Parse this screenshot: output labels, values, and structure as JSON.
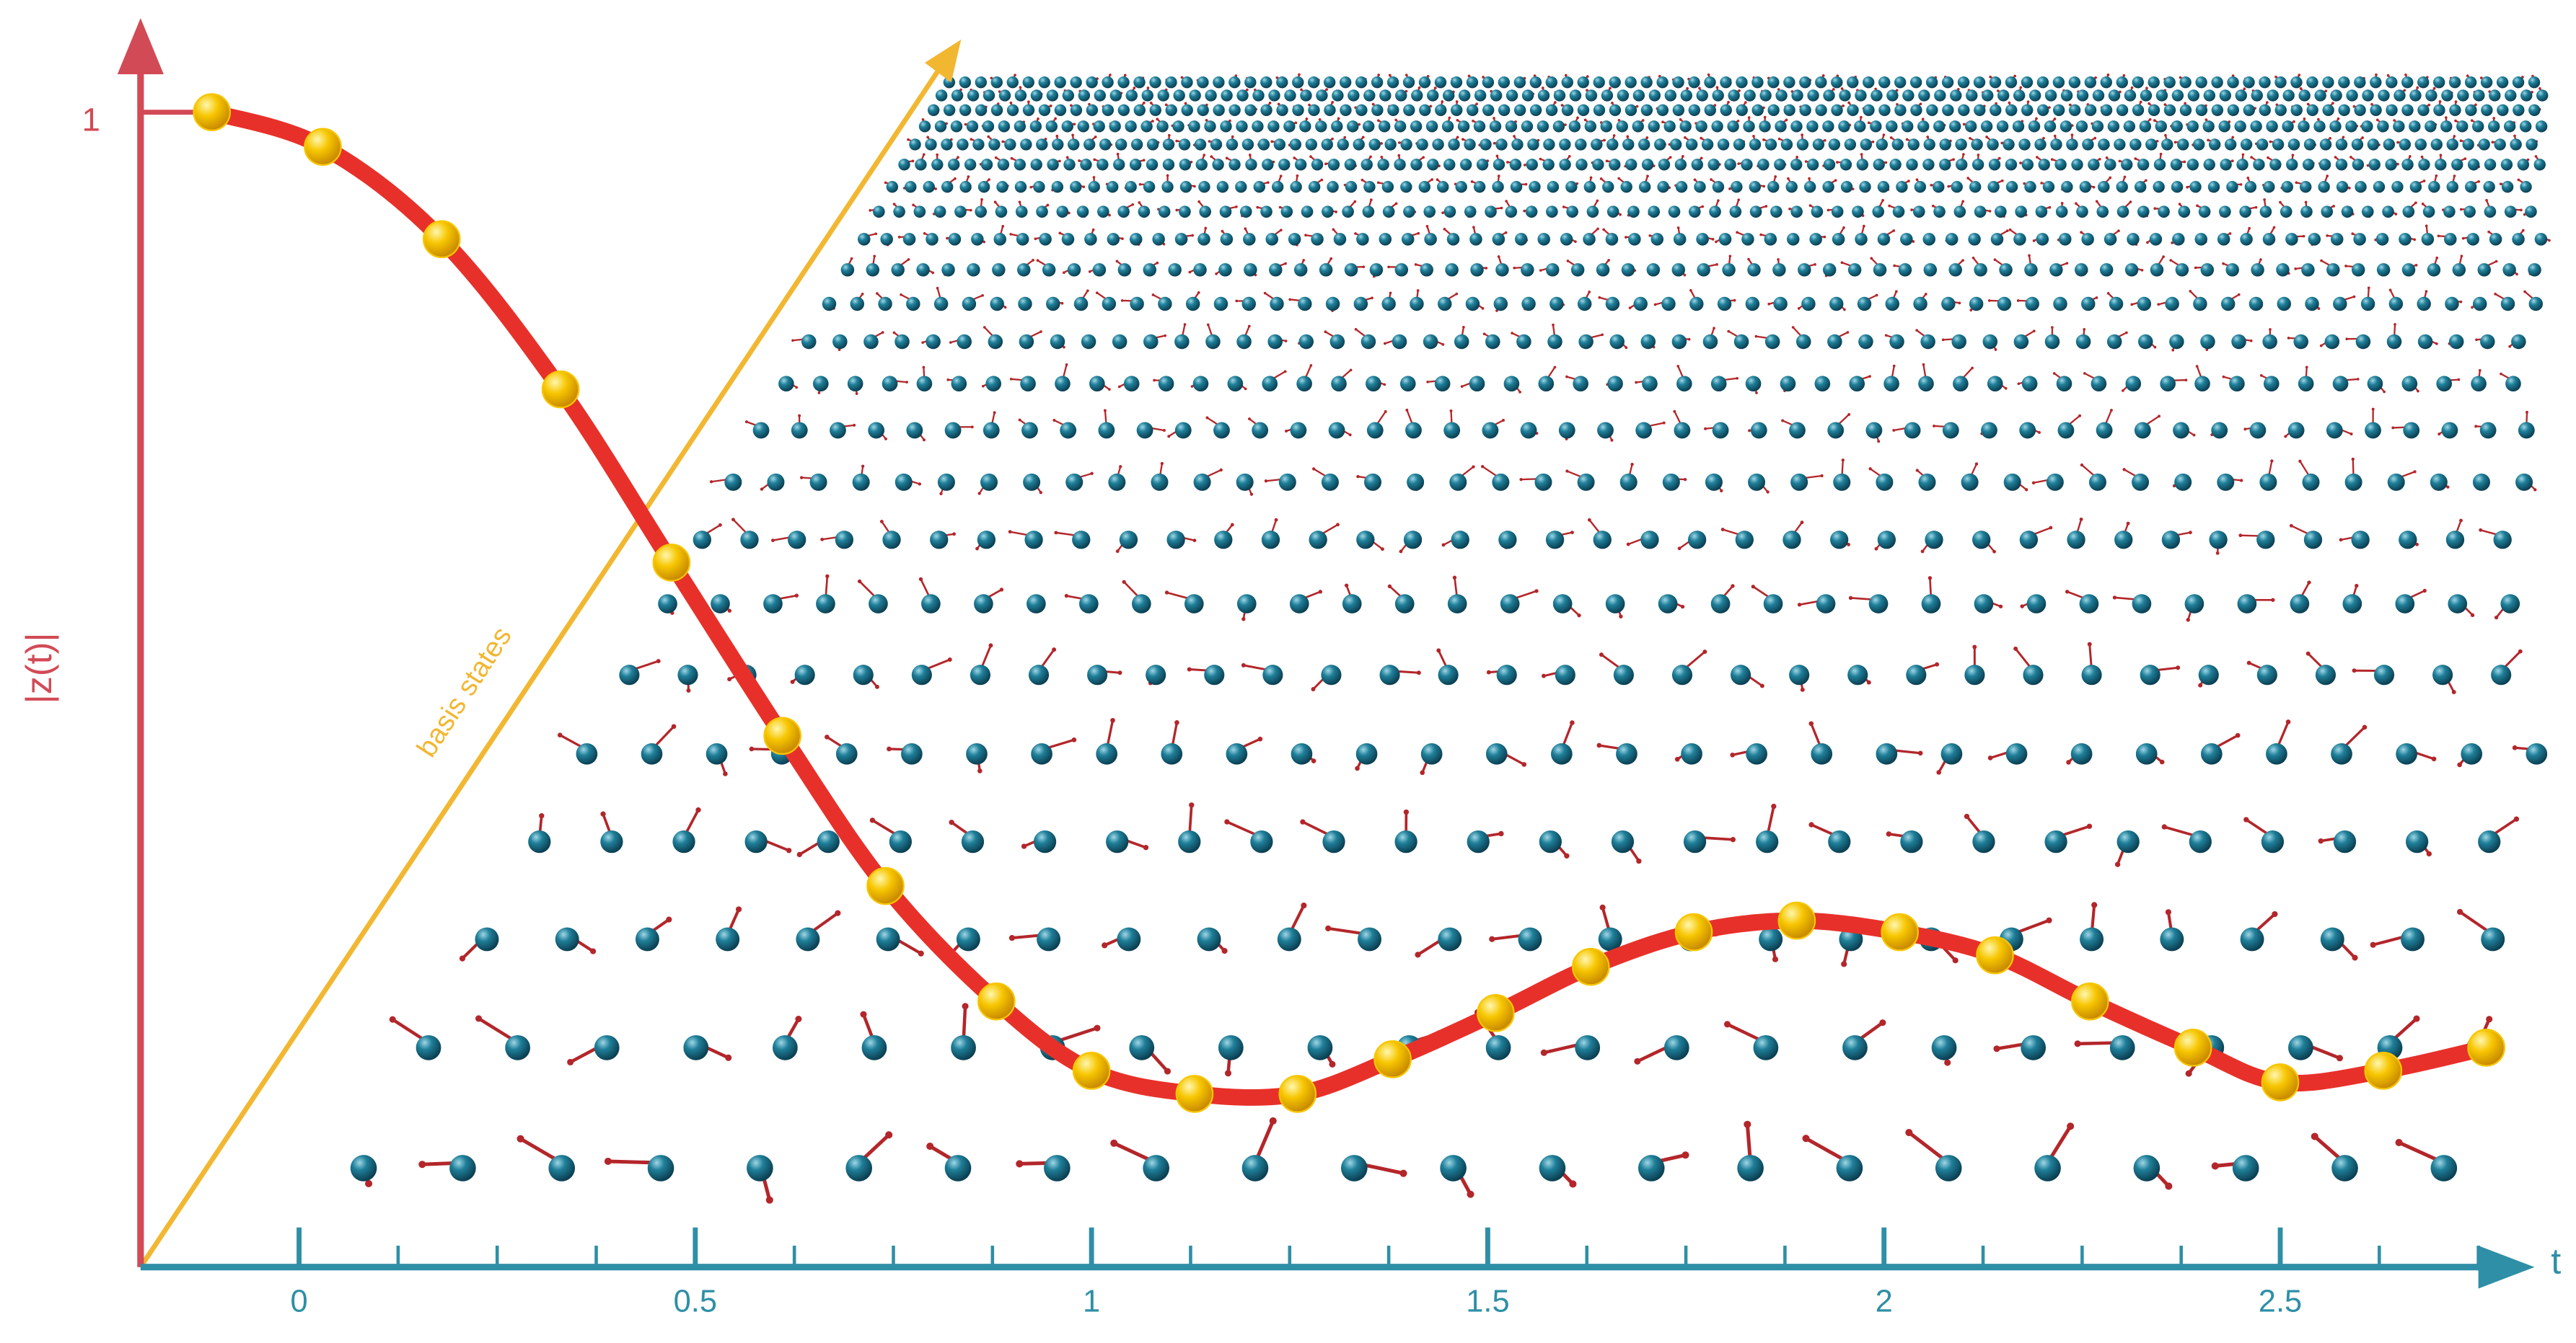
{
  "chart_data": {
    "type": "line",
    "y_label": "|z(t)|",
    "x_label": "t",
    "annotation": "basis states",
    "x": [
      -0.11,
      0.03,
      0.18,
      0.33,
      0.47,
      0.61,
      0.74,
      0.88,
      1.0,
      1.13,
      1.26,
      1.38,
      1.51,
      1.63,
      1.76,
      1.89,
      2.02,
      2.14,
      2.26,
      2.39,
      2.5,
      2.63,
      2.76
    ],
    "values": [
      1.0,
      0.97,
      0.89,
      0.76,
      0.61,
      0.46,
      0.33,
      0.23,
      0.17,
      0.15,
      0.15,
      0.18,
      0.22,
      0.26,
      0.29,
      0.3,
      0.29,
      0.27,
      0.23,
      0.19,
      0.16,
      0.17,
      0.19
    ],
    "line_color": "#e8302a",
    "marker_color": "#f7c600",
    "x_axis_color": "#2e8fa6",
    "y_axis_color": "#d24a55",
    "annotation_color": "#f2b731",
    "xlim": [
      -0.2,
      2.8
    ],
    "ylim": [
      0,
      1.07
    ],
    "xticks": [
      0,
      0.5,
      1,
      1.5,
      2,
      2.5
    ],
    "xminorticks": [
      0.125,
      0.25,
      0.375,
      0.625,
      0.75,
      0.875,
      1.125,
      1.25,
      1.375,
      1.625,
      1.75,
      1.875,
      2.125,
      2.25,
      2.375,
      2.625,
      2.75
    ],
    "yticks": [
      1
    ]
  }
}
